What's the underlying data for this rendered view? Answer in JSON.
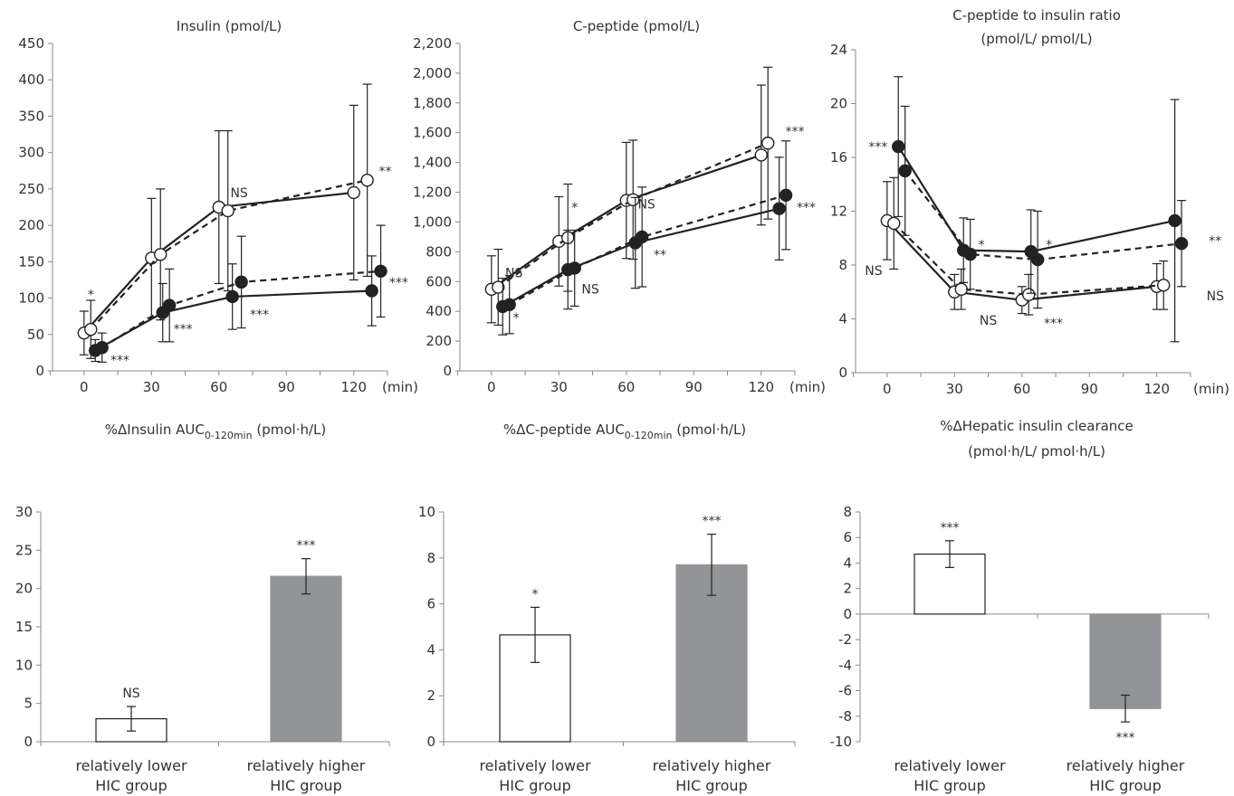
{
  "chart_data": [
    {
      "type": "line",
      "title": "Insulin (pmol/L)",
      "title_lines": [
        "Insulin (pmol/L)"
      ],
      "unit_label": "(min)",
      "x_ticks": [
        "0",
        "30",
        "60",
        "90",
        "120"
      ],
      "xlim": [
        -10,
        135
      ],
      "ylim": [
        0,
        450
      ],
      "y_ticks": [
        "0",
        "50",
        "100",
        "150",
        "200",
        "250",
        "300",
        "350",
        "400",
        "450"
      ],
      "y_tick_values": [
        0,
        50,
        100,
        150,
        200,
        250,
        300,
        350,
        400,
        450
      ],
      "series": [
        {
          "marker": "open",
          "line": "solid",
          "x": [
            0,
            30,
            60,
            120
          ],
          "y": [
            52,
            155,
            225,
            245
          ],
          "err": [
            30,
            82,
            105,
            120
          ]
        },
        {
          "marker": "open",
          "line": "dashed",
          "x": [
            3,
            34,
            64,
            126
          ],
          "y": [
            57,
            160,
            220,
            262
          ],
          "err": [
            40,
            90,
            110,
            132
          ]
        },
        {
          "marker": "filled",
          "line": "solid",
          "x": [
            5,
            35,
            66,
            128
          ],
          "y": [
            28,
            80,
            102,
            110
          ],
          "err": [
            15,
            40,
            45,
            48
          ]
        },
        {
          "marker": "filled",
          "line": "dashed",
          "x": [
            8,
            38,
            70,
            132
          ],
          "y": [
            32,
            90,
            122,
            137
          ],
          "err": [
            20,
            50,
            63,
            63
          ]
        }
      ],
      "annotations": [
        {
          "text": "*",
          "x": 3,
          "y": 105
        },
        {
          "text": "***",
          "x": 16,
          "y": 15
        },
        {
          "text": "***",
          "x": 44,
          "y": 58
        },
        {
          "text": "NS",
          "x": 69,
          "y": 245
        },
        {
          "text": "***",
          "x": 78,
          "y": 78
        },
        {
          "text": "**",
          "x": 134,
          "y": 275
        },
        {
          "text": "***",
          "x": 140,
          "y": 122
        }
      ]
    },
    {
      "type": "line",
      "title": "C-peptide (pmol/L)",
      "title_lines": [
        "C-peptide (pmol/L)"
      ],
      "unit_label": "(min)",
      "x_ticks": [
        "0",
        "30",
        "60",
        "90",
        "120"
      ],
      "xlim": [
        -10,
        135
      ],
      "ylim": [
        0,
        2200
      ],
      "y_ticks": [
        "0",
        "200",
        "400",
        "600",
        "800",
        "1,000",
        "1,200",
        "1,400",
        "1,600",
        "1,800",
        "2,000",
        "2,200"
      ],
      "y_tick_values": [
        0,
        200,
        400,
        600,
        800,
        1000,
        1200,
        1400,
        1600,
        1800,
        2000,
        2200
      ],
      "series": [
        {
          "marker": "open",
          "line": "solid",
          "x": [
            0,
            30,
            60,
            120
          ],
          "y": [
            548,
            870,
            1145,
            1450
          ],
          "err": [
            225,
            300,
            390,
            470
          ]
        },
        {
          "marker": "open",
          "line": "dashed",
          "x": [
            3,
            34,
            63,
            123
          ],
          "y": [
            562,
            895,
            1150,
            1530
          ],
          "err": [
            255,
            360,
            400,
            510
          ]
        },
        {
          "marker": "filled",
          "line": "solid",
          "x": [
            5,
            34,
            64,
            128
          ],
          "y": [
            432,
            680,
            860,
            1090
          ],
          "err": [
            190,
            265,
            305,
            345
          ]
        },
        {
          "marker": "filled",
          "line": "dashed",
          "x": [
            8,
            37,
            67,
            131
          ],
          "y": [
            445,
            690,
            900,
            1180
          ],
          "err": [
            195,
            255,
            335,
            365
          ]
        }
      ],
      "annotations": [
        {
          "text": "NS",
          "x": 10,
          "y": 660
        },
        {
          "text": "*",
          "x": 11,
          "y": 360
        },
        {
          "text": "*",
          "x": 37,
          "y": 1100
        },
        {
          "text": "NS",
          "x": 44,
          "y": 550
        },
        {
          "text": "NS",
          "x": 69,
          "y": 1120
        },
        {
          "text": "**",
          "x": 75,
          "y": 780
        },
        {
          "text": "***",
          "x": 135,
          "y": 1610
        },
        {
          "text": "***",
          "x": 140,
          "y": 1100
        }
      ]
    },
    {
      "type": "line",
      "title": "C-peptide to insulin ratio (pmol/L/ pmol/L)",
      "title_lines": [
        "C-peptide to insulin ratio",
        "(pmol/L/ pmol/L)"
      ],
      "unit_label": "(min)",
      "x_ticks": [
        "0",
        "30",
        "60",
        "90",
        "120"
      ],
      "xlim": [
        -10,
        135
      ],
      "ylim": [
        0,
        24
      ],
      "y_ticks": [
        "0",
        "4",
        "8",
        "12",
        "16",
        "20",
        "24"
      ],
      "y_tick_values": [
        0,
        4,
        8,
        12,
        16,
        20,
        24
      ],
      "series": [
        {
          "marker": "open",
          "line": "solid",
          "x": [
            0,
            30,
            60,
            120
          ],
          "y": [
            11.3,
            6.0,
            5.4,
            6.4
          ],
          "err": [
            2.9,
            1.3,
            1.0,
            1.7
          ]
        },
        {
          "marker": "open",
          "line": "dashed",
          "x": [
            3,
            33,
            63,
            123
          ],
          "y": [
            11.1,
            6.2,
            5.8,
            6.5
          ],
          "err": [
            3.4,
            1.5,
            1.5,
            1.8
          ]
        },
        {
          "marker": "filled",
          "line": "solid",
          "x": [
            5,
            34,
            64,
            128
          ],
          "y": [
            16.8,
            9.1,
            9.0,
            11.3
          ],
          "err": [
            5.2,
            2.4,
            3.1,
            9.0
          ]
        },
        {
          "marker": "filled",
          "line": "dashed",
          "x": [
            8,
            37,
            67,
            131
          ],
          "y": [
            15.0,
            8.8,
            8.4,
            9.6
          ],
          "err": [
            4.8,
            2.6,
            3.6,
            3.2
          ]
        }
      ],
      "annotations": [
        {
          "text": "***",
          "x": -4,
          "y": 16.8
        },
        {
          "text": "NS",
          "x": -6,
          "y": 7.6
        },
        {
          "text": "*",
          "x": 42,
          "y": 9.5
        },
        {
          "text": "NS",
          "x": 45,
          "y": 3.9
        },
        {
          "text": "*",
          "x": 72,
          "y": 9.5
        },
        {
          "text": "***",
          "x": 74,
          "y": 3.7
        },
        {
          "text": "**",
          "x": 146,
          "y": 9.8
        },
        {
          "text": "NS",
          "x": 146,
          "y": 5.7
        }
      ]
    },
    {
      "type": "bar",
      "title": "%ΔInsulin AUC0-120min (pmol·h/L)",
      "title_parts": {
        "pre": "%ΔInsulin AUC",
        "sub": "0-120min",
        "post": " (pmol·h/L)"
      },
      "categories": [
        [
          "relatively lower",
          "HIC group"
        ],
        [
          "relatively higher",
          "HIC group"
        ]
      ],
      "values": [
        3.0,
        21.6
      ],
      "err": [
        1.6,
        2.3
      ],
      "colors": [
        "#ffffff",
        "#929497"
      ],
      "sig": [
        "NS",
        "***"
      ],
      "ylim": [
        0,
        30
      ],
      "y_ticks": [
        "0",
        "5",
        "10",
        "15",
        "20",
        "25",
        "30"
      ],
      "y_tick_values": [
        0,
        5,
        10,
        15,
        20,
        25,
        30
      ]
    },
    {
      "type": "bar",
      "title": "%ΔC-peptide AUC0-120min (pmol·h/L)",
      "title_parts": {
        "pre": "%ΔC-peptide AUC",
        "sub": "0-120min",
        "post": " (pmol·h/L)"
      },
      "categories": [
        [
          "relatively lower",
          "HIC group"
        ],
        [
          "relatively higher",
          "HIC group"
        ]
      ],
      "values": [
        4.65,
        7.7
      ],
      "err": [
        1.2,
        1.33
      ],
      "colors": [
        "#ffffff",
        "#929497"
      ],
      "sig": [
        "*",
        "***"
      ],
      "ylim": [
        0,
        10
      ],
      "y_ticks": [
        "0",
        "2",
        "4",
        "6",
        "8",
        "10"
      ],
      "y_tick_values": [
        0,
        2,
        4,
        6,
        8,
        10
      ]
    },
    {
      "type": "bar",
      "title": "%ΔHepatic insulin clearance (pmol·h/L/ pmol·h/L)",
      "title_lines": [
        "%ΔHepatic insulin clearance",
        "(pmol·h/L/ pmol·h/L)"
      ],
      "categories": [
        [
          "relatively lower",
          "HIC group"
        ],
        [
          "relatively higher",
          "HIC group"
        ]
      ],
      "values": [
        4.7,
        -7.4
      ],
      "err": [
        1.05,
        1.05
      ],
      "colors": [
        "#ffffff",
        "#929497"
      ],
      "sig": [
        "***",
        "***"
      ],
      "ylim": [
        -10,
        8
      ],
      "y_ticks": [
        "-10",
        "-8",
        "-6",
        "-4",
        "-2",
        "0",
        "2",
        "4",
        "6",
        "8"
      ],
      "y_tick_values": [
        -10,
        -8,
        -6,
        -4,
        -2,
        0,
        2,
        4,
        6,
        8
      ]
    }
  ]
}
